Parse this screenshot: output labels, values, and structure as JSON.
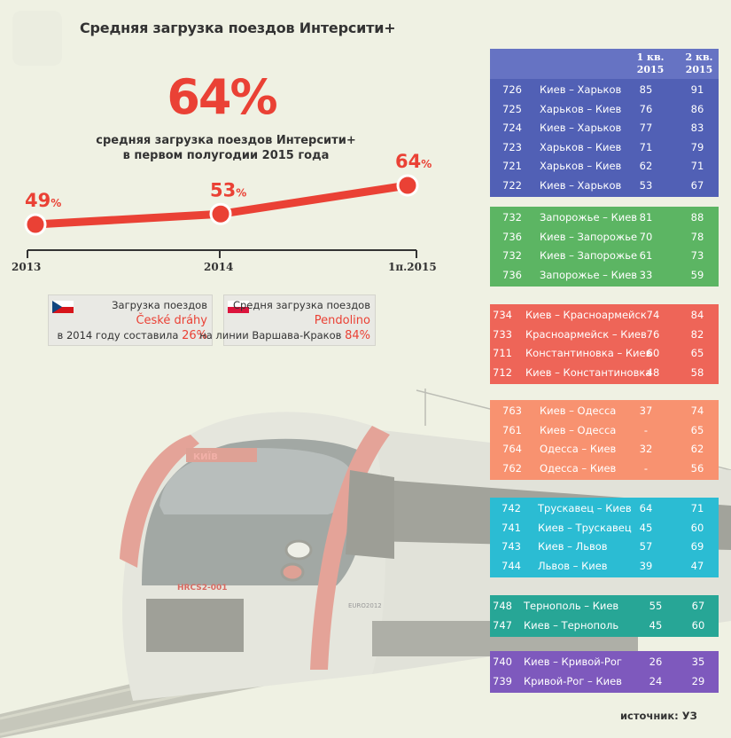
{
  "title": "Средняя загрузка поездов Интерсити+",
  "headline": {
    "value": "64%",
    "caption_line1": "средняя загрузка поездов Интерсити+",
    "caption_line2": "в первом полугодии 2015 года"
  },
  "chart_data": {
    "type": "line",
    "title": "",
    "categories": [
      "2013",
      "2014",
      "1п.2015"
    ],
    "values": [
      49,
      53,
      64
    ],
    "value_labels": [
      "49",
      "53",
      "64"
    ],
    "unit_label": "%",
    "xlabel": "",
    "ylabel": "",
    "ylim": [
      40,
      70
    ],
    "grid": false,
    "color": "#ea4135"
  },
  "info_boxes": {
    "czech": {
      "line1": "Загрузка поездов",
      "highlight": "České dráhy",
      "line3_text": "в 2014 году составила",
      "line3_value": "26%"
    },
    "poland": {
      "line1": "Средня загрузка поездов",
      "highlight": "Pendolino",
      "line3_text": "на линии Варшава-Краков",
      "line3_value": "84%"
    }
  },
  "train": {
    "destination_display": "КИЇВ",
    "number_plate": "HRCS2-001",
    "logo_text": "EURO2012"
  },
  "table": {
    "header": {
      "q1": [
        "1 кв.",
        "2015"
      ],
      "q2": [
        "2 кв.",
        "2015"
      ]
    },
    "groups": [
      {
        "color": "#5160b5",
        "rows": [
          {
            "num": "726",
            "route": "Киев – Харьков",
            "q1": "85",
            "q2": "91"
          },
          {
            "num": "725",
            "route": "Харьков – Киев",
            "q1": "76",
            "q2": "86"
          },
          {
            "num": "724",
            "route": "Киев – Харьков",
            "q1": "77",
            "q2": "83"
          },
          {
            "num": "723",
            "route": "Харьков – Киев",
            "q1": "71",
            "q2": "79"
          },
          {
            "num": "721",
            "route": "Харьков – Киев",
            "q1": "62",
            "q2": "71"
          },
          {
            "num": "722",
            "route": "Киев – Харьков",
            "q1": "53",
            "q2": "67"
          }
        ]
      },
      {
        "color": "#5cb563",
        "rows": [
          {
            "num": "732",
            "route": "Запорожье – Киев",
            "q1": "81",
            "q2": "88"
          },
          {
            "num": "736",
            "route": "Киев – Запорожье",
            "q1": "70",
            "q2": "78"
          },
          {
            "num": "732",
            "route": "Киев – Запорожье",
            "q1": "61",
            "q2": "73"
          },
          {
            "num": "736",
            "route": "Запорожье – Киев",
            "q1": "33",
            "q2": "59"
          }
        ]
      },
      {
        "color": "#ee6558",
        "rows": [
          {
            "num": "734",
            "route": "Киев – Красноармейск",
            "q1": "74",
            "q2": "84"
          },
          {
            "num": "733",
            "route": "Красноармейск – Киев",
            "q1": "76",
            "q2": "82"
          },
          {
            "num": "711",
            "route": "Константиновка – Киев",
            "q1": "60",
            "q2": "65"
          },
          {
            "num": "712",
            "route": "Киев – Константиновка",
            "q1": "48",
            "q2": "58"
          }
        ]
      },
      {
        "color": "#f89270",
        "rows": [
          {
            "num": "763",
            "route": "Киев – Одесса",
            "q1": "37",
            "q2": "74"
          },
          {
            "num": "761",
            "route": "Киев – Одесса",
            "q1": "-",
            "q2": "65"
          },
          {
            "num": "764",
            "route": "Одесса – Киев",
            "q1": "32",
            "q2": "62"
          },
          {
            "num": "762",
            "route": "Одесса – Киев",
            "q1": "-",
            "q2": "56"
          }
        ]
      },
      {
        "color": "#2bbcd3",
        "rows": [
          {
            "num": "742",
            "route": "Трускавец – Киев",
            "q1": "64",
            "q2": "71"
          },
          {
            "num": "741",
            "route": "Киев – Трускавец",
            "q1": "45",
            "q2": "60"
          },
          {
            "num": "743",
            "route": "Киев – Львов",
            "q1": "57",
            "q2": "69"
          },
          {
            "num": "744",
            "route": "Львов – Киев",
            "q1": "39",
            "q2": "47"
          }
        ]
      },
      {
        "color": "#27a696",
        "rows": [
          {
            "num": "748",
            "route": "Тернополь – Киев",
            "q1": "55",
            "q2": "67"
          },
          {
            "num": "747",
            "route": "Киев – Тернополь",
            "q1": "45",
            "q2": "60"
          }
        ]
      },
      {
        "color": "#7e59bd",
        "rows": [
          {
            "num": "740",
            "route": "Киев – Кривой-Рог",
            "q1": "26",
            "q2": "35"
          },
          {
            "num": "739",
            "route": "Кривой-Рог – Киев",
            "q1": "24",
            "q2": "29"
          }
        ]
      }
    ]
  },
  "source": "источник: УЗ"
}
